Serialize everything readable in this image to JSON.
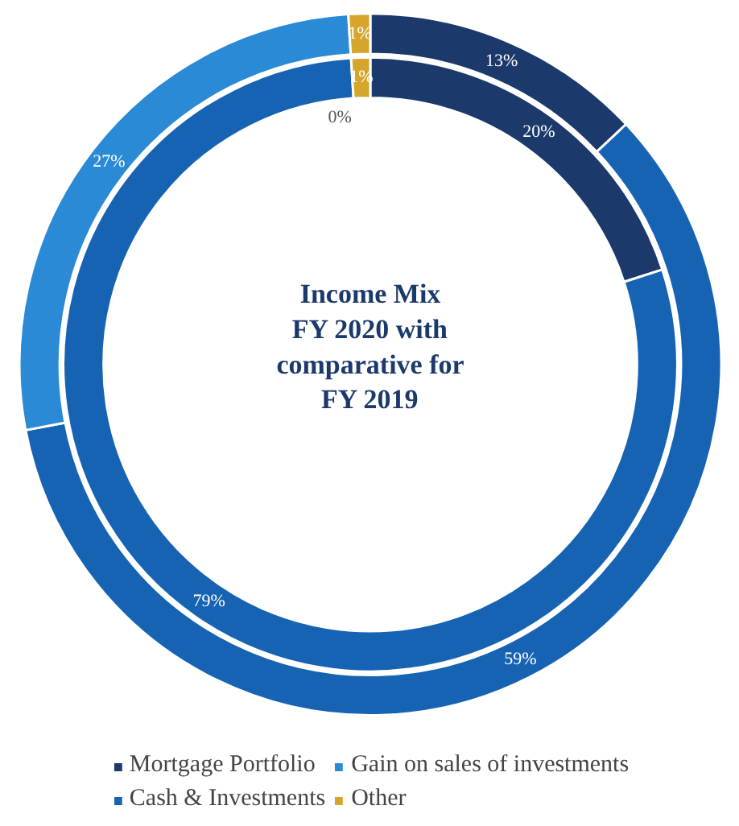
{
  "chart_data": {
    "type": "donut",
    "title": "Income Mix\nFY 2020 with\ncomparative for\nFY 2019",
    "categories": [
      "Mortgage Portfolio",
      "Cash & Investments",
      "Gain on sales of investments",
      "Other"
    ],
    "colors": [
      "#1b3a6b",
      "#1763b3",
      "#2a8ad6",
      "#d6a62c"
    ],
    "series": [
      {
        "values": [
          13,
          59,
          27,
          1
        ],
        "value_labels": [
          "13%",
          "59%",
          "27%",
          "1%"
        ]
      },
      {
        "values": [
          20,
          79,
          0,
          1
        ],
        "value_labels": [
          "20%",
          "79%",
          "0%",
          "1%"
        ]
      }
    ],
    "legend": "bottom"
  }
}
